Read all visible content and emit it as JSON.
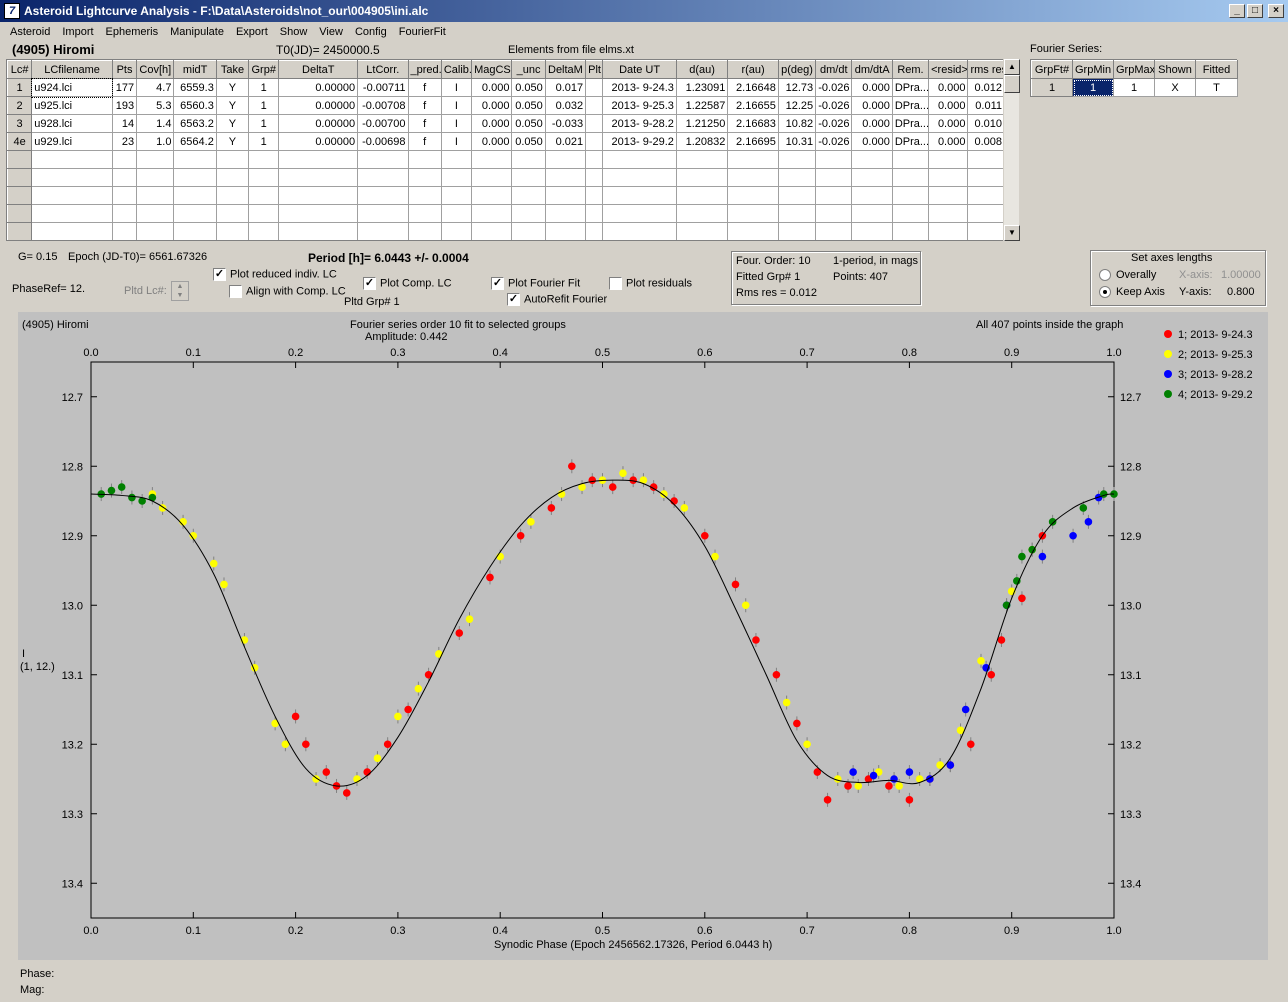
{
  "window": {
    "title": "Asteroid Lightcurve Analysis - F:\\Data\\Asteroids\\not_our\\004905\\ini.alc",
    "icon_glyph": "7"
  },
  "menu": [
    "Asteroid",
    "Import",
    "Ephemeris",
    "Manipulate",
    "Export",
    "Show",
    "View",
    "Config",
    "FourierFit"
  ],
  "header": {
    "object": "(4905) Hiromi",
    "t0": "T0(JD)= 2450000.5",
    "elements": "Elements from file elms.xt",
    "fourier_label": "Fourier Series:"
  },
  "lc_table": {
    "columns": [
      "Lc#",
      "LCfilename",
      "Pts",
      "Cov[h]",
      "midT",
      "Take",
      "Grp#",
      "DeltaT",
      "LtCorr.",
      "_pred.",
      "Calib.",
      "MagCS",
      "_unc",
      "DeltaM",
      "Plt",
      "Date UT",
      "d(au)",
      "r(au)",
      "p(deg)",
      "dm/dt",
      "dm/dtA",
      "Rem.",
      "<resid>",
      "rms res"
    ],
    "rows": [
      [
        "1",
        "u924.lci",
        "177",
        "4.7",
        "6559.3",
        "Y",
        "1",
        "0.00000",
        "-0.00711",
        "f",
        "I",
        "0.000",
        "0.050",
        "0.017",
        "",
        "2013- 9-24.3",
        "1.23091",
        "2.16648",
        "12.73",
        "-0.026",
        "0.000",
        "DPra...",
        "0.000",
        "0.012"
      ],
      [
        "2",
        "u925.lci",
        "193",
        "5.3",
        "6560.3",
        "Y",
        "1",
        "0.00000",
        "-0.00708",
        "f",
        "I",
        "0.000",
        "0.050",
        "0.032",
        "",
        "2013- 9-25.3",
        "1.22587",
        "2.16655",
        "12.25",
        "-0.026",
        "0.000",
        "DPra...",
        "0.000",
        "0.011"
      ],
      [
        "3",
        "u928.lci",
        "14",
        "1.4",
        "6563.2",
        "Y",
        "1",
        "0.00000",
        "-0.00700",
        "f",
        "I",
        "0.000",
        "0.050",
        "-0.033",
        "",
        "2013- 9-28.2",
        "1.21250",
        "2.16683",
        "10.82",
        "-0.026",
        "0.000",
        "DPra...",
        "0.000",
        "0.010"
      ],
      [
        "4e",
        "u929.lci",
        "23",
        "1.0",
        "6564.2",
        "Y",
        "1",
        "0.00000",
        "-0.00698",
        "f",
        "I",
        "0.000",
        "0.050",
        "0.021",
        "",
        "2013- 9-29.2",
        "1.20832",
        "2.16695",
        "10.31",
        "-0.026",
        "0.000",
        "DPra...",
        "0.000",
        "0.008"
      ]
    ]
  },
  "fourier_table": {
    "columns": [
      "GrpFt#",
      "GrpMin",
      "GrpMax",
      "Shown",
      "Fitted"
    ],
    "row": [
      "1",
      "1",
      "1",
      "X",
      "T"
    ]
  },
  "info": {
    "g": "G= 0.15",
    "epoch": "Epoch (JD-T0)= 6561.67326",
    "period": "Period [h]= 6.0443 +/- 0.0004",
    "phaseref": "PhaseRef= 12.",
    "pltd_lc": "Pltd Lc#:",
    "pltd_grp": "Pltd Grp#  1"
  },
  "checks": {
    "plot_reduced": {
      "label": "Plot reduced indiv. LC",
      "checked": true
    },
    "align_comp": {
      "label": "Align with Comp. LC",
      "checked": false
    },
    "plot_comp": {
      "label": "Plot Comp. LC",
      "checked": true
    },
    "plot_fourier": {
      "label": "Plot Fourier Fit",
      "checked": true
    },
    "autorefit": {
      "label": "AutoRefit Fourier",
      "checked": true
    },
    "plot_residuals": {
      "label": "Plot residuals",
      "checked": false
    }
  },
  "fit_box": {
    "order": "Four. Order: 10",
    "mode": "1-period, in mags",
    "fitted_grp": "Fitted Grp# 1",
    "points": "Points: 407",
    "rms": "Rms res      = 0.012"
  },
  "axes_box": {
    "title": "Set axes lengths",
    "overally": "Overally",
    "keep_axis": "Keep Axis",
    "xaxis_label": "X-axis:",
    "xaxis_value": "1.00000",
    "yaxis_label": "Y-axis:",
    "yaxis_value": "0.800",
    "selected": "keep_axis"
  },
  "plot": {
    "name": "(4905) Hiromi",
    "subtitle1": "Fourier series order 10 fit to selected groups",
    "subtitle2": "Amplitude: 0.442",
    "points_note": "All 407 points inside the graph",
    "ylabel_line1": "I",
    "ylabel_line2": "(1, 12.)",
    "xlabel": "Synodic Phase (Epoch 2456562.17326, Period 6.0443 h)"
  },
  "chart_data": {
    "type": "scatter",
    "xlim": [
      0.0,
      1.0
    ],
    "ylim": [
      12.65,
      13.45
    ],
    "y_inverted": true,
    "xticks": [
      0.0,
      0.1,
      0.2,
      0.3,
      0.4,
      0.5,
      0.6,
      0.7,
      0.8,
      0.9,
      1.0
    ],
    "yticks": [
      12.7,
      12.8,
      12.9,
      13.0,
      13.1,
      13.2,
      13.3,
      13.4
    ],
    "curve": {
      "x": [
        0.0,
        0.03,
        0.06,
        0.09,
        0.12,
        0.15,
        0.18,
        0.21,
        0.24,
        0.27,
        0.3,
        0.33,
        0.36,
        0.39,
        0.42,
        0.45,
        0.48,
        0.51,
        0.54,
        0.57,
        0.6,
        0.63,
        0.66,
        0.69,
        0.72,
        0.75,
        0.78,
        0.81,
        0.84,
        0.87,
        0.9,
        0.93,
        0.96,
        0.99,
        1.0
      ],
      "y": [
        12.84,
        12.842,
        12.85,
        12.885,
        12.955,
        13.06,
        13.16,
        13.235,
        13.26,
        13.245,
        13.19,
        13.11,
        13.02,
        12.945,
        12.885,
        12.845,
        12.825,
        12.82,
        12.825,
        12.855,
        12.915,
        13.005,
        13.1,
        13.195,
        13.245,
        13.255,
        13.252,
        13.255,
        13.22,
        13.12,
        12.99,
        12.9,
        12.86,
        12.842,
        12.84
      ]
    },
    "series": [
      {
        "name": "1; 2013- 9-24.3",
        "color": "#ff0000",
        "x": [
          0.2,
          0.21,
          0.23,
          0.24,
          0.25,
          0.27,
          0.29,
          0.31,
          0.33,
          0.36,
          0.39,
          0.42,
          0.45,
          0.47,
          0.49,
          0.51,
          0.53,
          0.55,
          0.57,
          0.6,
          0.63,
          0.65,
          0.67,
          0.69,
          0.71,
          0.72,
          0.74,
          0.76,
          0.78,
          0.8,
          0.82,
          0.84,
          0.86,
          0.88,
          0.89,
          0.91,
          0.93
        ],
        "y": [
          13.16,
          13.2,
          13.24,
          13.26,
          13.27,
          13.24,
          13.2,
          13.15,
          13.1,
          13.04,
          12.96,
          12.9,
          12.86,
          12.8,
          12.82,
          12.83,
          12.82,
          12.83,
          12.85,
          12.9,
          12.97,
          13.05,
          13.1,
          13.17,
          13.24,
          13.28,
          13.26,
          13.25,
          13.26,
          13.28,
          13.25,
          13.23,
          13.2,
          13.1,
          13.05,
          12.99,
          12.9
        ]
      },
      {
        "name": "2; 2013- 9-25.3",
        "color": "#ffff00",
        "x": [
          0.06,
          0.07,
          0.09,
          0.1,
          0.12,
          0.13,
          0.15,
          0.16,
          0.18,
          0.19,
          0.22,
          0.26,
          0.28,
          0.3,
          0.32,
          0.34,
          0.37,
          0.4,
          0.43,
          0.46,
          0.48,
          0.5,
          0.52,
          0.54,
          0.56,
          0.58,
          0.61,
          0.64,
          0.68,
          0.7,
          0.73,
          0.75,
          0.77,
          0.79,
          0.81,
          0.83,
          0.85,
          0.87,
          0.9,
          0.92
        ],
        "y": [
          12.84,
          12.86,
          12.88,
          12.9,
          12.94,
          12.97,
          13.05,
          13.09,
          13.17,
          13.2,
          13.25,
          13.25,
          13.22,
          13.16,
          13.12,
          13.07,
          13.02,
          12.93,
          12.88,
          12.84,
          12.83,
          12.82,
          12.81,
          12.82,
          12.84,
          12.86,
          12.93,
          13.0,
          13.14,
          13.2,
          13.25,
          13.26,
          13.24,
          13.26,
          13.25,
          13.23,
          13.18,
          13.08,
          12.98,
          12.92
        ]
      },
      {
        "name": "3; 2013- 9-28.2",
        "color": "#0000ff",
        "x": [
          0.745,
          0.765,
          0.785,
          0.8,
          0.82,
          0.84,
          0.855,
          0.875,
          0.895,
          0.93,
          0.96,
          0.975,
          0.985
        ],
        "y": [
          13.24,
          13.245,
          13.25,
          13.24,
          13.25,
          13.23,
          13.15,
          13.09,
          13.0,
          12.93,
          12.9,
          12.88,
          12.845
        ]
      },
      {
        "name": "4; 2013- 9-29.2",
        "color": "#008000",
        "x": [
          0.01,
          0.02,
          0.03,
          0.04,
          0.05,
          0.06,
          0.895,
          0.905,
          0.91,
          0.92,
          0.94,
          0.97,
          0.99,
          1.0
        ],
        "y": [
          12.84,
          12.835,
          12.83,
          12.845,
          12.85,
          12.845,
          13.0,
          12.965,
          12.93,
          12.92,
          12.88,
          12.86,
          12.84,
          12.84
        ]
      }
    ]
  }
}
